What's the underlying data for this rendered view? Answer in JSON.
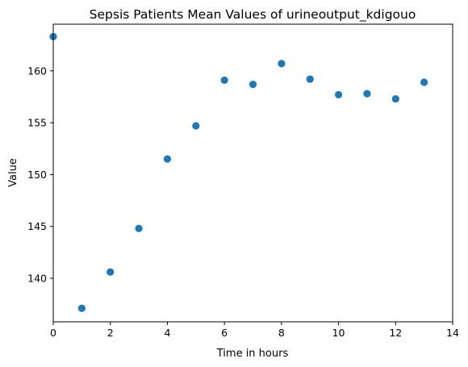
{
  "chart_data": {
    "type": "scatter",
    "title": "Sepsis Patients Mean Values of urineoutput_kdigouo",
    "xlabel": "Time in hours",
    "ylabel": "Value",
    "xlim": [
      0,
      14
    ],
    "ylim": [
      135.8,
      164.5
    ],
    "xticks": [
      0,
      2,
      4,
      6,
      8,
      10,
      12,
      14
    ],
    "yticks": [
      140,
      145,
      150,
      155,
      160
    ],
    "grid": false,
    "marker_color": "#1f77b4",
    "x": [
      0,
      1,
      2,
      3,
      4,
      5,
      6,
      7,
      8,
      9,
      10,
      11,
      12,
      13
    ],
    "y": [
      163.3,
      137.1,
      140.6,
      144.8,
      151.5,
      154.7,
      159.1,
      158.7,
      160.7,
      159.2,
      157.7,
      157.8,
      157.3,
      158.9
    ]
  }
}
